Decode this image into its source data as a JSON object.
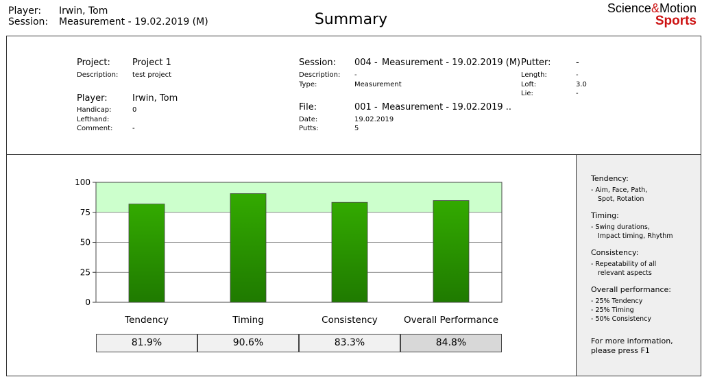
{
  "header": {
    "player_label": "Player:",
    "player_value": "Irwin, Tom",
    "session_label": "Session:",
    "session_value": "Measurement - 19.02.2019 (M)",
    "title": "Summary",
    "logo_part1": "Science",
    "logo_amp": "&",
    "logo_part2": "Motion",
    "logo_sub": "Sports"
  },
  "info": {
    "project_label": "Project:",
    "project_value": "Project 1",
    "description_label": "Description:",
    "description_value": "test project",
    "player_label": "Player:",
    "player_value": "Irwin, Tom",
    "handicap_label": "Handicap:",
    "handicap_value": "0",
    "lefthand_label": "Lefthand:",
    "lefthand_value": "",
    "comment_label": "Comment:",
    "comment_value": "-",
    "session_label": "Session:",
    "session_num": "004 -",
    "session_value": "Measurement - 19.02.2019 (M)",
    "sdesc_label": "Description:",
    "sdesc_value": "-",
    "type_label": "Type:",
    "type_value": "Measurement",
    "file_label": "File:",
    "file_num": "001 -",
    "file_value": "Measurement - 19.02.2019 ..",
    "date_label": "Date:",
    "date_value": "19.02.2019",
    "putts_label": "Putts:",
    "putts_value": "5",
    "putter_label": "Putter:",
    "putter_value": "-",
    "length_label": "Length:",
    "length_value": "-",
    "loft_label": "Loft:",
    "loft_value": "3.0",
    "lie_label": "Lie:",
    "lie_value": "-"
  },
  "sidebar": {
    "tendency_title": "Tendency:",
    "tendency_l1": "- Aim, Face, Path,",
    "tendency_l2": "Spot, Rotation",
    "timing_title": "Timing:",
    "timing_l1": "- Swing durations,",
    "timing_l2": "Impact timing, Rhythm",
    "consistency_title": "Consistency:",
    "consistency_l1": "- Repeatability of all",
    "consistency_l2": "relevant aspects",
    "overall_title": "Overall performance:",
    "overall_l1": "- 25% Tendency",
    "overall_l2": "- 25% Timing",
    "overall_l3": "- 50% Consistency",
    "info_l1": "For more information,",
    "info_l2": "please press F1"
  },
  "colors": {
    "bar_top": "#33aa00",
    "bar_bottom": "#1f7a00",
    "band": "#ccffcc"
  },
  "chart_data": {
    "type": "bar",
    "categories": [
      "Tendency",
      "Timing",
      "Consistency",
      "Overall Performance"
    ],
    "values": [
      81.9,
      90.6,
      83.3,
      84.8
    ],
    "value_labels": [
      "81.9%",
      "90.6%",
      "83.3%",
      "84.8%"
    ],
    "yticks": [
      0,
      25,
      50,
      75,
      100
    ],
    "ylim": [
      0,
      100
    ],
    "highlight_band": [
      75,
      100
    ],
    "title": "",
    "xlabel": "",
    "ylabel": "",
    "grid": true
  }
}
